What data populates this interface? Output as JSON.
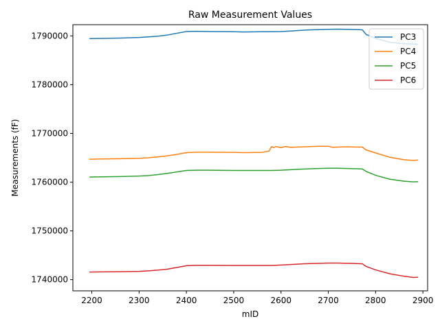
{
  "chart_data": {
    "type": "line",
    "title": "Raw Measurement Values",
    "xlabel": "mID",
    "ylabel": "Measurements (fF)",
    "xlim": [
      2160,
      2910
    ],
    "ylim": [
      1737700,
      1792300
    ],
    "xticks": [
      2200,
      2300,
      2400,
      2500,
      2600,
      2700,
      2800,
      2900
    ],
    "yticks": [
      1740000,
      1750000,
      1760000,
      1770000,
      1780000,
      1790000
    ],
    "xtick_labels": [
      "2200",
      "2300",
      "2400",
      "2500",
      "2600",
      "2700",
      "2800",
      "2900"
    ],
    "ytick_labels": [
      "1740000",
      "1750000",
      "1760000",
      "1770000",
      "1780000",
      "1790000"
    ],
    "grid": false,
    "legend_position": "top-right",
    "series": [
      {
        "name": "PC3",
        "color": "#1f77b4",
        "x": [
          2195,
          2220,
          2260,
          2300,
          2320,
          2340,
          2360,
          2380,
          2400,
          2420,
          2450,
          2500,
          2520,
          2560,
          2580,
          2600,
          2620,
          2650,
          2680,
          2700,
          2720,
          2740,
          2760,
          2772,
          2780,
          2800,
          2830,
          2860,
          2890
        ],
        "y": [
          1789450,
          1789480,
          1789550,
          1789680,
          1789800,
          1789950,
          1790180,
          1790550,
          1790900,
          1790950,
          1790900,
          1790850,
          1790800,
          1790850,
          1790850,
          1790900,
          1791000,
          1791200,
          1791300,
          1791350,
          1791380,
          1791350,
          1791300,
          1791250,
          1790300,
          1789500,
          1788700,
          1788400,
          1788300
        ]
      },
      {
        "name": "PC4",
        "color": "#ff7f0e",
        "x": [
          2195,
          2220,
          2260,
          2300,
          2320,
          2340,
          2360,
          2380,
          2400,
          2420,
          2450,
          2500,
          2520,
          2560,
          2575,
          2580,
          2585,
          2590,
          2600,
          2610,
          2620,
          2650,
          2680,
          2700,
          2710,
          2720,
          2740,
          2760,
          2772,
          2780,
          2800,
          2830,
          2860,
          2880,
          2890
        ],
        "y": [
          1764700,
          1764750,
          1764800,
          1764900,
          1765000,
          1765200,
          1765400,
          1765700,
          1766050,
          1766150,
          1766150,
          1766100,
          1766050,
          1766100,
          1766400,
          1767300,
          1767100,
          1767300,
          1767100,
          1767300,
          1767150,
          1767250,
          1767350,
          1767350,
          1767150,
          1767200,
          1767250,
          1767200,
          1767200,
          1766600,
          1766000,
          1765100,
          1764600,
          1764450,
          1764550
        ]
      },
      {
        "name": "PC5",
        "color": "#2ca02c",
        "x": [
          2195,
          2220,
          2260,
          2300,
          2320,
          2340,
          2360,
          2380,
          2400,
          2420,
          2450,
          2500,
          2520,
          2560,
          2580,
          2600,
          2620,
          2650,
          2680,
          2700,
          2720,
          2740,
          2760,
          2772,
          2780,
          2800,
          2830,
          2860,
          2880,
          2890
        ],
        "y": [
          1761050,
          1761100,
          1761150,
          1761250,
          1761350,
          1761550,
          1761800,
          1762100,
          1762400,
          1762450,
          1762450,
          1762400,
          1762400,
          1762400,
          1762400,
          1762450,
          1762550,
          1762700,
          1762800,
          1762850,
          1762850,
          1762800,
          1762750,
          1762700,
          1762200,
          1761400,
          1760600,
          1760200,
          1760050,
          1760100
        ]
      },
      {
        "name": "PC6",
        "color": "#d62728",
        "x": [
          2195,
          2220,
          2260,
          2300,
          2320,
          2340,
          2360,
          2380,
          2400,
          2420,
          2450,
          2500,
          2520,
          2560,
          2580,
          2600,
          2620,
          2650,
          2680,
          2700,
          2720,
          2740,
          2760,
          2772,
          2780,
          2800,
          2830,
          2860,
          2880,
          2890
        ],
        "y": [
          1741550,
          1741580,
          1741620,
          1741700,
          1741800,
          1741950,
          1742150,
          1742500,
          1742850,
          1742950,
          1742950,
          1742900,
          1742900,
          1742900,
          1742900,
          1743000,
          1743100,
          1743250,
          1743350,
          1743400,
          1743400,
          1743350,
          1743300,
          1743250,
          1742700,
          1742000,
          1741200,
          1740700,
          1740450,
          1740500
        ]
      }
    ]
  }
}
